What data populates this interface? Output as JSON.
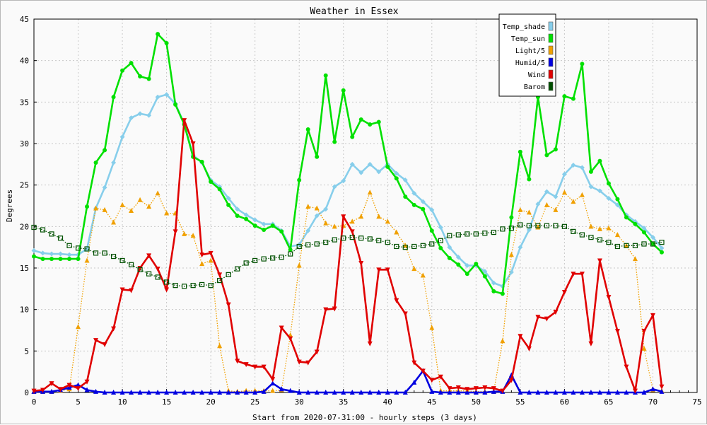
{
  "chart_data": {
    "type": "line",
    "title": "Weather in Essex",
    "xlabel": "Start from 2020-07-31:00 - hourly steps (3 days)",
    "ylabel": "Degrees",
    "xlim": [
      0,
      75
    ],
    "ylim": [
      0,
      45
    ],
    "xticks": [
      0,
      5,
      10,
      15,
      20,
      25,
      30,
      35,
      40,
      45,
      50,
      55,
      60,
      65,
      70,
      75
    ],
    "yticks": [
      0,
      5,
      10,
      15,
      20,
      25,
      30,
      35,
      40,
      45
    ],
    "grid": true,
    "legend_position": "top-right",
    "series": [
      {
        "name": "Temp_shade",
        "color": "#87ceeb",
        "marker": "diamond",
        "line": "solid",
        "values": [
          17.1,
          16.8,
          16.7,
          16.7,
          16.6,
          16.6,
          17.3,
          22.2,
          24.7,
          27.7,
          30.8,
          33.1,
          33.6,
          33.4,
          35.6,
          35.9,
          34.8,
          32.4,
          28.6,
          27.7,
          25.6,
          24.8,
          23.4,
          22.1,
          21.4,
          20.8,
          20.3,
          20.3,
          19.5,
          17.6,
          17.8,
          19.5,
          21.3,
          22.1,
          24.8,
          25.5,
          27.5,
          26.5,
          27.5,
          26.6,
          27.5,
          26.4,
          25.6,
          24.0,
          23.0,
          22.0,
          19.9,
          17.5,
          16.3,
          15.3,
          15.3,
          14.6,
          13.2,
          12.8,
          14.5,
          17.5,
          19.6,
          22.7,
          24.2,
          23.6,
          26.3,
          27.4,
          27.1,
          24.8,
          24.3,
          23.4,
          22.6,
          21.4,
          20.6,
          19.8,
          18.7,
          17.4
        ]
      },
      {
        "name": "Temp_sun",
        "color": "#00e000",
        "marker": "circle",
        "line": "solid",
        "values": [
          16.4,
          16.1,
          16.1,
          16.1,
          16.1,
          16.1,
          22.4,
          27.7,
          29.2,
          35.6,
          38.8,
          39.7,
          38.1,
          37.8,
          43.2,
          42.1,
          34.7,
          32.3,
          28.4,
          27.8,
          25.4,
          24.5,
          22.6,
          21.3,
          20.9,
          20.1,
          19.6,
          20.1,
          19.4,
          17.2,
          25.6,
          31.7,
          28.4,
          38.2,
          30.2,
          36.4,
          30.8,
          32.9,
          32.3,
          32.6,
          27.2,
          25.8,
          23.6,
          22.6,
          22.1,
          19.5,
          17.4,
          16.2,
          15.4,
          14.3,
          15.5,
          14.0,
          12.2,
          11.9,
          21.1,
          29.0,
          25.7,
          35.6,
          28.6,
          29.3,
          35.7,
          35.4,
          39.6,
          26.6,
          27.9,
          25.2,
          23.3,
          21.1,
          20.3,
          19.3,
          17.9,
          16.9
        ]
      },
      {
        "name": "Light/5",
        "color": "#f0a000",
        "marker": "triangle-up",
        "line": "dotted",
        "values": [
          0.1,
          0.1,
          0.1,
          0.2,
          0.4,
          7.9,
          15.9,
          22.2,
          22.0,
          20.5,
          22.6,
          21.9,
          23.2,
          22.4,
          24.0,
          21.6,
          21.6,
          19.1,
          18.9,
          15.5,
          15.9,
          5.6,
          0.2,
          0.1,
          0.2,
          0.2,
          0.2,
          0.2,
          0.3,
          6.9,
          15.3,
          22.4,
          22.2,
          20.4,
          20.0,
          20.1,
          20.6,
          21.2,
          24.1,
          21.2,
          20.6,
          19.3,
          17.7,
          14.9,
          14.1,
          7.8,
          0.2,
          0.2,
          0.2,
          0.2,
          0.1,
          0.1,
          0.1,
          6.2,
          16.6,
          22.0,
          21.7,
          19.9,
          22.6,
          22.0,
          24.1,
          23.0,
          23.8,
          20.0,
          19.7,
          19.8,
          19.0,
          17.7,
          16.1,
          5.3,
          0.3,
          0.2
        ]
      },
      {
        "name": "Humid/5",
        "color": "#0000e0",
        "marker": "triangle-up",
        "line": "solid",
        "values": [
          0.1,
          0.1,
          0.1,
          0.3,
          0.6,
          0.9,
          0.3,
          0.1,
          0.0,
          0.0,
          0.0,
          0.0,
          0.0,
          0.0,
          0.0,
          0.0,
          0.0,
          0.0,
          0.0,
          0.0,
          0.0,
          0.0,
          0.0,
          0.0,
          0.0,
          0.0,
          0.1,
          1.1,
          0.4,
          0.2,
          0.0,
          0.0,
          0.0,
          0.0,
          0.0,
          0.0,
          0.0,
          0.0,
          0.0,
          0.0,
          0.0,
          0.0,
          0.0,
          1.2,
          2.6,
          0.1,
          0.0,
          0.0,
          0.0,
          0.0,
          0.0,
          0.0,
          0.1,
          0.1,
          2.1,
          0.0,
          0.0,
          0.0,
          0.0,
          0.0,
          0.0,
          0.0,
          0.0,
          0.0,
          0.0,
          0.0,
          0.0,
          0.0,
          0.0,
          0.0,
          0.4,
          0.1
        ]
      },
      {
        "name": "Wind",
        "color": "#e00000",
        "marker": "triangle-down",
        "line": "solid",
        "values": [
          0.2,
          0.3,
          1.1,
          0.4,
          0.9,
          0.5,
          1.3,
          6.3,
          5.8,
          7.7,
          12.4,
          12.3,
          15.0,
          16.5,
          14.9,
          12.4,
          19.4,
          32.8,
          30.0,
          16.6,
          16.8,
          14.2,
          10.6,
          3.8,
          3.4,
          3.1,
          3.1,
          1.6,
          7.8,
          6.5,
          3.7,
          3.6,
          4.9,
          10.0,
          10.1,
          21.2,
          19.4,
          15.6,
          5.9,
          14.8,
          14.8,
          11.1,
          9.5,
          3.6,
          2.6,
          1.5,
          1.9,
          0.5,
          0.6,
          0.4,
          0.5,
          0.6,
          0.5,
          0.2,
          1.5,
          6.8,
          5.3,
          9.1,
          8.9,
          9.7,
          12.1,
          14.3,
          14.3,
          5.9,
          15.9,
          11.5,
          7.4,
          3.1,
          0.2,
          7.4,
          9.3,
          0.7
        ]
      },
      {
        "name": "Barom",
        "color": "#005000",
        "marker": "square",
        "line": "dotted",
        "values": [
          19.9,
          19.6,
          19.1,
          18.6,
          17.7,
          17.4,
          17.3,
          16.8,
          16.8,
          16.4,
          15.9,
          15.4,
          14.8,
          14.3,
          13.9,
          13.3,
          12.9,
          12.8,
          12.9,
          13.0,
          12.9,
          13.5,
          14.2,
          14.9,
          15.6,
          15.9,
          16.1,
          16.2,
          16.3,
          16.7,
          17.6,
          17.8,
          17.9,
          18.1,
          18.4,
          18.6,
          18.7,
          18.6,
          18.5,
          18.3,
          18.1,
          17.6,
          17.5,
          17.6,
          17.7,
          17.9,
          18.3,
          18.9,
          19.0,
          19.1,
          19.1,
          19.2,
          19.3,
          19.7,
          19.8,
          20.2,
          20.1,
          20.1,
          20.1,
          20.1,
          20.0,
          19.4,
          19.0,
          18.7,
          18.4,
          18.1,
          17.6,
          17.7,
          17.7,
          17.9,
          17.9,
          18.1
        ]
      }
    ]
  }
}
